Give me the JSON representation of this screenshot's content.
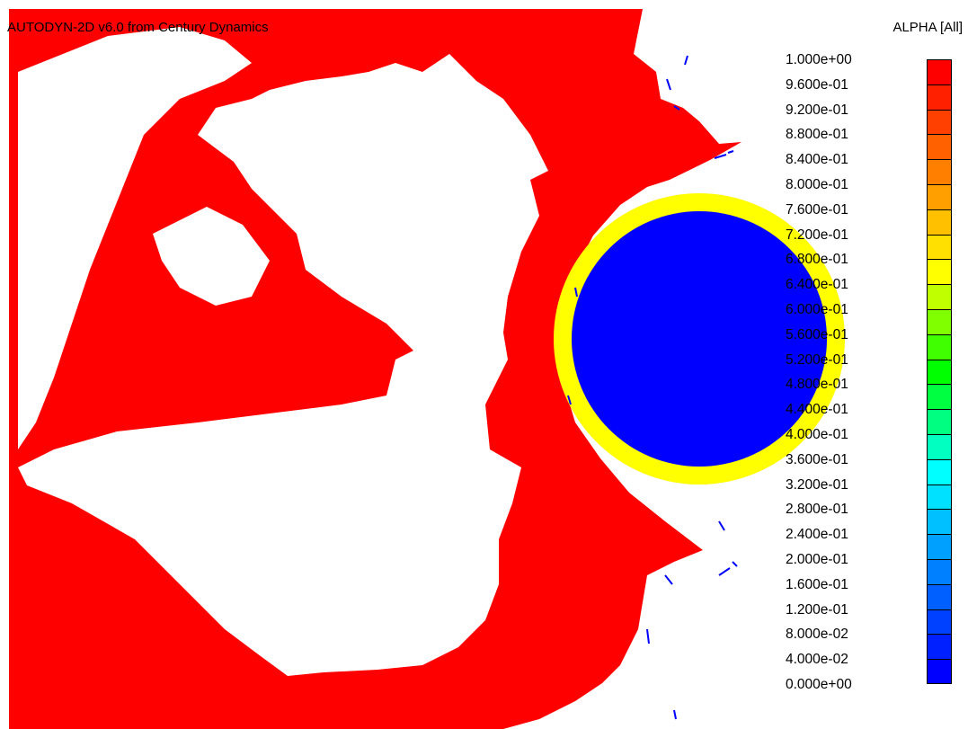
{
  "header": {
    "title": "AUTODYN-2D v6.0 from Century Dynamics",
    "variable_label": "ALPHA [All]"
  },
  "legend": {
    "labels": [
      "1.000e+00",
      "9.600e-01",
      "9.200e-01",
      "8.800e-01",
      "8.400e-01",
      "8.000e-01",
      "7.600e-01",
      "7.200e-01",
      "6.800e-01",
      "6.400e-01",
      "6.000e-01",
      "5.600e-01",
      "5.200e-01",
      "4.800e-01",
      "4.400e-01",
      "4.000e-01",
      "3.600e-01",
      "3.200e-01",
      "2.800e-01",
      "2.400e-01",
      "2.000e-01",
      "1.600e-01",
      "1.200e-01",
      "8.000e-02",
      "4.000e-02",
      "0.000e+00"
    ],
    "colors": [
      "#ff0000",
      "#ff2000",
      "#ff4000",
      "#ff6000",
      "#ff8000",
      "#ffa000",
      "#ffc000",
      "#ffe000",
      "#ffff00",
      "#c0ff00",
      "#80ff00",
      "#40ff00",
      "#00ff00",
      "#00ff40",
      "#00ff80",
      "#00ffc0",
      "#00ffff",
      "#00e0ff",
      "#00c0ff",
      "#00a0ff",
      "#0080ff",
      "#0060ff",
      "#0040ff",
      "#0020ff",
      "#0000ff"
    ]
  },
  "scene_colors": {
    "material": "#ff0000",
    "ring": "#ffff00",
    "core": "#0000ff",
    "void": "#ffffff"
  }
}
